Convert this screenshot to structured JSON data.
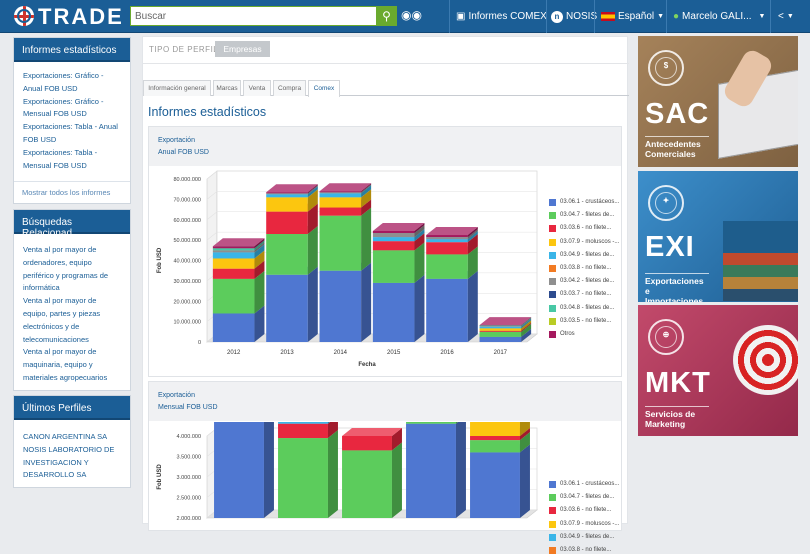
{
  "header": {
    "brand": "TRADE",
    "search_placeholder": "Buscar",
    "search_icon": "search-icon",
    "binoculars_icon": "binoculars-icon",
    "informes_label": "Informes COMEX",
    "nosis_label": "NOSIS",
    "language_label": "Español",
    "user_label": "Marcelo GALI...",
    "share_icon": "share-icon",
    "color": "#1b5e96"
  },
  "sidebar": {
    "informes": {
      "title": "Informes estadísticos",
      "links": [
        "Exportaciones: Gráfico - Anual FOB USD",
        "Exportaciones: Gráfico - Mensual FOB USD",
        "Exportaciones: Tabla - Anual FOB USD",
        "Exportaciones: Tabla - Mensual FOB USD"
      ],
      "more": "Mostrar todos los informes"
    },
    "busquedas": {
      "title": "Búsquedas Relacionad...",
      "links": [
        "Venta al por mayor de ordenadores, equipo periférico y programas de informática",
        "Venta al por mayor de equipo, partes y piezas electrónicos y de telecomunicaciones",
        "Venta al por mayor de maquinaria, equipo y materiales agropecuarios"
      ]
    },
    "perfiles": {
      "title": "Últimos Perfiles",
      "links": [
        "CANON ARGENTINA SA",
        "NOSIS LABORATORIO DE INVESTIGACION Y DESARROLLO SA"
      ]
    }
  },
  "main": {
    "perfil_label": "TIPO DE PERFIL",
    "perfil_value": "Empresas",
    "tabs": [
      "Información general",
      "Marcas",
      "Venta",
      "Compra",
      "Comex"
    ],
    "active_tab": "Comex",
    "title": "Informes estadísticos"
  },
  "chart_data": [
    {
      "type": "bar",
      "stacked": true,
      "three_d": true,
      "title": "Exportación",
      "subtitle": "Anual FOB USD",
      "xlabel": "Fecha",
      "ylabel": "Fob USD",
      "ylim": [
        0,
        80000000
      ],
      "yticks": [
        "80.000.000",
        "70.000.000",
        "60.000.000",
        "50.000.000",
        "40.000.000",
        "30.000.000",
        "20.000.000",
        "10.000.000",
        "0"
      ],
      "categories": [
        "2012",
        "2013",
        "2014",
        "2015",
        "2016",
        "2017"
      ],
      "series": [
        {
          "name": "03.06.1 - crustáceos...",
          "color": "#4f77d1",
          "values": [
            14000000,
            33000000,
            35000000,
            29000000,
            31000000,
            2500000
          ]
        },
        {
          "name": "03.04.7 - filetes de...",
          "color": "#5ccc5c",
          "values": [
            17000000,
            20000000,
            27000000,
            16000000,
            12000000,
            2500000
          ]
        },
        {
          "name": "03.03.6 - no filete...",
          "color": "#e8273f",
          "values": [
            5000000,
            11000000,
            4000000,
            4500000,
            6000000,
            500000
          ]
        },
        {
          "name": "03.07.9 - moluscos -...",
          "color": "#fcc60f",
          "values": [
            5000000,
            7000000,
            5000000,
            0,
            0,
            1200000
          ]
        },
        {
          "name": "03.04.9 - filetes de...",
          "color": "#3ab5e8",
          "values": [
            3000000,
            1500000,
            2000000,
            2000000,
            1500000,
            800000
          ]
        },
        {
          "name": "03.03.8 - no filete...",
          "color": "#f27b23",
          "values": [
            0,
            0,
            0,
            0,
            0,
            0
          ]
        },
        {
          "name": "03.04.2 - filetes de...",
          "color": "#8f8f8f",
          "values": [
            1000000,
            500000,
            500000,
            2000000,
            1000000,
            300000
          ]
        },
        {
          "name": "03.03.7 - no filete...",
          "color": "#2d4b8e",
          "values": [
            0,
            0,
            0,
            0,
            0,
            0
          ]
        },
        {
          "name": "03.04.8 - filetes de...",
          "color": "#48c8a5",
          "values": [
            1000000,
            0,
            0,
            0,
            0,
            300000
          ]
        },
        {
          "name": "03.03.5 - no filete...",
          "color": "#b9cc25",
          "values": [
            0,
            0,
            0,
            0,
            0,
            0
          ]
        },
        {
          "name": "Otros",
          "color": "#a5195e",
          "values": [
            1000000,
            500000,
            500000,
            1000000,
            1000000,
            200000
          ]
        }
      ]
    },
    {
      "type": "bar",
      "stacked": true,
      "three_d": true,
      "title": "Exportación",
      "subtitle": "Mensual FOB USD",
      "ylabel": "Fob USD",
      "ylim_visible": [
        2000000,
        4000000
      ],
      "yticks": [
        "4.000.000",
        "3.500.000",
        "3.000.000",
        "2.500.000",
        "2.000.000"
      ],
      "series": [
        {
          "name": "03.06.1 - crustáceos...",
          "color": "#4f77d1",
          "values": [
            2500000,
            0,
            0,
            2300000,
            1600000
          ]
        },
        {
          "name": "03.04.7 - filetes de...",
          "color": "#5ccc5c",
          "values": [
            800000,
            1950000,
            1650000,
            1050000,
            300000
          ]
        },
        {
          "name": "03.03.6 - no filete...",
          "color": "#e8273f",
          "values": [
            600000,
            350000,
            350000,
            200000,
            100000
          ]
        },
        {
          "name": "03.07.9 - moluscos -...",
          "color": "#fcc60f",
          "values": [
            0,
            0,
            0,
            0,
            1200000
          ]
        },
        {
          "name": "03.04.9 - filetes de...",
          "color": "#3ab5e8",
          "values": [
            0,
            150000,
            0,
            0,
            100000
          ]
        },
        {
          "name": "03.03.8 - no filete...",
          "color": "#f27b23",
          "values": [
            150000,
            0,
            0,
            150000,
            0
          ]
        }
      ]
    }
  ],
  "ads": [
    {
      "code": "SAC",
      "subtitle": "Antecedentes Comerciales",
      "color": "#9c7a52",
      "icon": "coins-icon"
    },
    {
      "code": "EXI",
      "subtitle": "Exportaciones e Importaciones",
      "color": "#2b7ab8",
      "icon": "network-icon"
    },
    {
      "code": "MKT",
      "subtitle": "Servicios de Marketing",
      "color": "#b23a5c",
      "icon": "target-icon"
    }
  ]
}
